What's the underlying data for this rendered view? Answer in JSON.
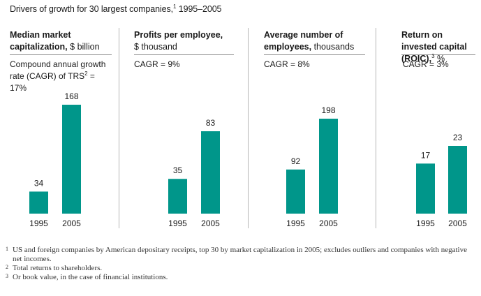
{
  "title": {
    "text": "Drivers of growth for 30 largest companies,",
    "sup": "1",
    "years": "1995–2005"
  },
  "accent_color": "#00968a",
  "panels": [
    {
      "title_bold": "Median market capitalization,",
      "title_unit": "$ billion",
      "cagr_prefix": "Compound annual growth rate (CAGR) of TRS",
      "cagr_sup": "2",
      "cagr_suffix": " = 17%"
    },
    {
      "title_bold": "Profits per employee,",
      "title_unit": "$ thousand",
      "cagr_text": "CAGR = 9%"
    },
    {
      "title_bold": "Average number of employees,",
      "title_unit": "thousands",
      "cagr_text": "CAGR = 8%"
    },
    {
      "title_bold": "Return on invested capital (ROIC),",
      "title_sup": "3",
      "title_unit": "%",
      "cagr_text": "CAGR = 3%"
    }
  ],
  "chart_data": [
    {
      "type": "bar",
      "categories": [
        "1995",
        "2005"
      ],
      "values": [
        34,
        168
      ],
      "data_labels": [
        "34",
        "168"
      ]
    },
    {
      "type": "bar",
      "categories": [
        "1995",
        "2005"
      ],
      "values": [
        35,
        83
      ],
      "data_labels": [
        "35",
        "83"
      ]
    },
    {
      "type": "bar",
      "categories": [
        "1995",
        "2005"
      ],
      "values": [
        92,
        198
      ],
      "data_labels": [
        "92",
        "198"
      ]
    },
    {
      "type": "bar",
      "categories": [
        "1995",
        "2005"
      ],
      "values": [
        17,
        23
      ],
      "data_labels": [
        "17",
        "23"
      ]
    }
  ],
  "footnotes": [
    {
      "num": "1",
      "text": "US and foreign companies by American depositary receipts, top 30 by market capitalization in 2005; excludes outliers and companies with negative net incomes."
    },
    {
      "num": "2",
      "text": "Total returns to shareholders."
    },
    {
      "num": "3",
      "text": "Or book value, in the case of financial institutions."
    }
  ]
}
